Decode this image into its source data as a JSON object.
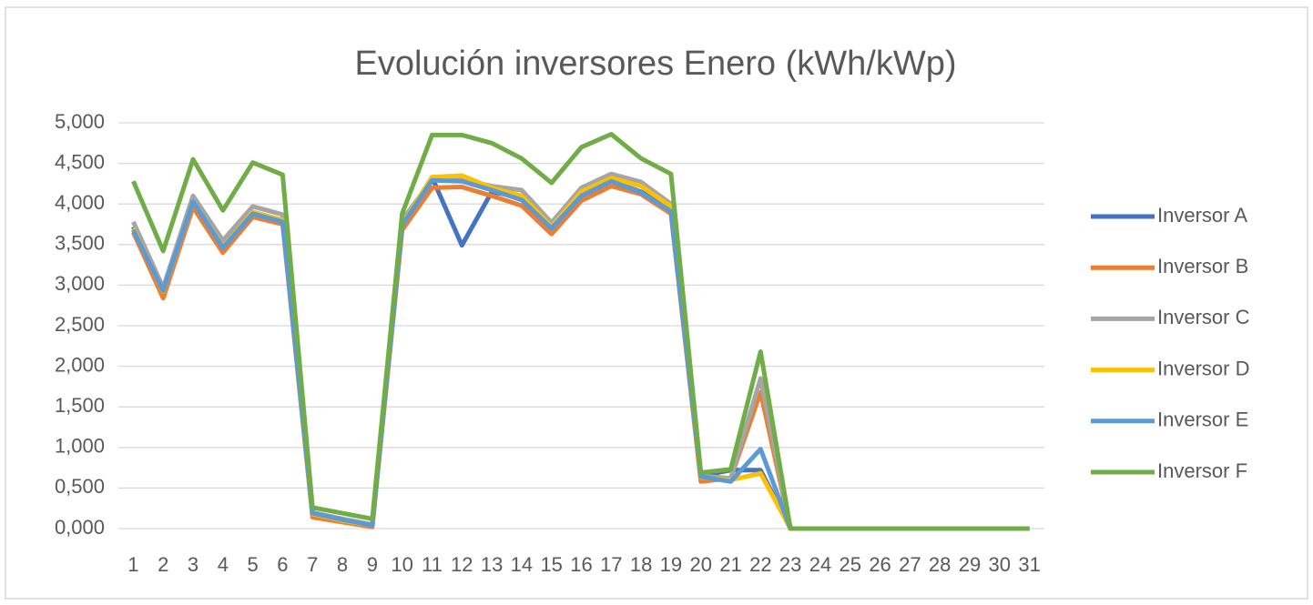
{
  "chart_data": {
    "type": "line",
    "title": "Evolución inversores Enero (kWh/kWp)",
    "categories": [
      "1",
      "2",
      "3",
      "4",
      "5",
      "6",
      "7",
      "8",
      "9",
      "10",
      "11",
      "12",
      "13",
      "14",
      "15",
      "16",
      "17",
      "18",
      "19",
      "20",
      "21",
      "22",
      "23",
      "24",
      "25",
      "26",
      "27",
      "28",
      "29",
      "30",
      "31"
    ],
    "series": [
      {
        "name": "Inversor A",
        "color": "#4472c4",
        "values": [
          3.72,
          2.92,
          4.03,
          3.47,
          3.9,
          3.8,
          0.18,
          0.1,
          0.04,
          3.75,
          4.33,
          3.49,
          4.15,
          4.08,
          3.7,
          4.1,
          4.28,
          4.15,
          3.93,
          0.65,
          0.72,
          0.72,
          0,
          0,
          0,
          0,
          0,
          0,
          0,
          0,
          0
        ]
      },
      {
        "name": "Inversor B",
        "color": "#ed7d31",
        "values": [
          3.65,
          2.84,
          3.96,
          3.4,
          3.84,
          3.75,
          0.14,
          0.08,
          0.02,
          3.68,
          4.2,
          4.21,
          4.1,
          3.98,
          3.63,
          4.04,
          4.22,
          4.12,
          3.88,
          0.58,
          0.62,
          1.68,
          0,
          0,
          0,
          0,
          0,
          0,
          0,
          0,
          0
        ]
      },
      {
        "name": "Inversor C",
        "color": "#a5a5a5",
        "values": [
          3.78,
          2.97,
          4.1,
          3.55,
          3.97,
          3.87,
          0.2,
          0.12,
          0.05,
          3.8,
          4.3,
          4.3,
          4.22,
          4.17,
          3.77,
          4.2,
          4.37,
          4.27,
          4.0,
          0.65,
          0.62,
          1.85,
          0,
          0,
          0,
          0,
          0,
          0,
          0,
          0,
          0
        ]
      },
      {
        "name": "Inversor D",
        "color": "#ffc000",
        "values": [
          3.7,
          2.92,
          4.03,
          3.47,
          3.9,
          3.8,
          0.18,
          0.1,
          0.04,
          3.75,
          4.33,
          4.35,
          4.2,
          4.1,
          3.72,
          4.15,
          4.32,
          4.22,
          3.97,
          0.63,
          0.6,
          0.68,
          0,
          0,
          0,
          0,
          0,
          0,
          0,
          0,
          0
        ]
      },
      {
        "name": "Inversor E",
        "color": "#5b9bd5",
        "values": [
          3.68,
          2.93,
          4.03,
          3.46,
          3.88,
          3.78,
          0.19,
          0.11,
          0.04,
          3.74,
          4.29,
          4.28,
          4.17,
          4.05,
          3.7,
          4.1,
          4.28,
          4.14,
          3.91,
          0.64,
          0.58,
          0.98,
          0,
          0,
          0,
          0,
          0,
          0,
          0,
          0,
          0
        ]
      },
      {
        "name": "Inversor F",
        "color": "#70ad47",
        "values": [
          4.28,
          3.42,
          4.55,
          3.92,
          4.51,
          4.36,
          0.26,
          0.19,
          0.12,
          3.88,
          4.85,
          4.85,
          4.75,
          4.56,
          4.26,
          4.7,
          4.86,
          4.56,
          4.37,
          0.69,
          0.73,
          2.18,
          0,
          0,
          0,
          0,
          0,
          0,
          0,
          0,
          0
        ]
      }
    ],
    "ylim": [
      0,
      5
    ],
    "yticks": [
      {
        "value": 0,
        "label": "0,000"
      },
      {
        "value": 0.5,
        "label": "0,500"
      },
      {
        "value": 1,
        "label": "1,000"
      },
      {
        "value": 1.5,
        "label": "1,500"
      },
      {
        "value": 2,
        "label": "2,000"
      },
      {
        "value": 2.5,
        "label": "2,500"
      },
      {
        "value": 3,
        "label": "3,000"
      },
      {
        "value": 3.5,
        "label": "3,500"
      },
      {
        "value": 4,
        "label": "4,000"
      },
      {
        "value": 4.5,
        "label": "4,500"
      },
      {
        "value": 5,
        "label": "5,000"
      }
    ],
    "grid": true,
    "legend": "right"
  }
}
